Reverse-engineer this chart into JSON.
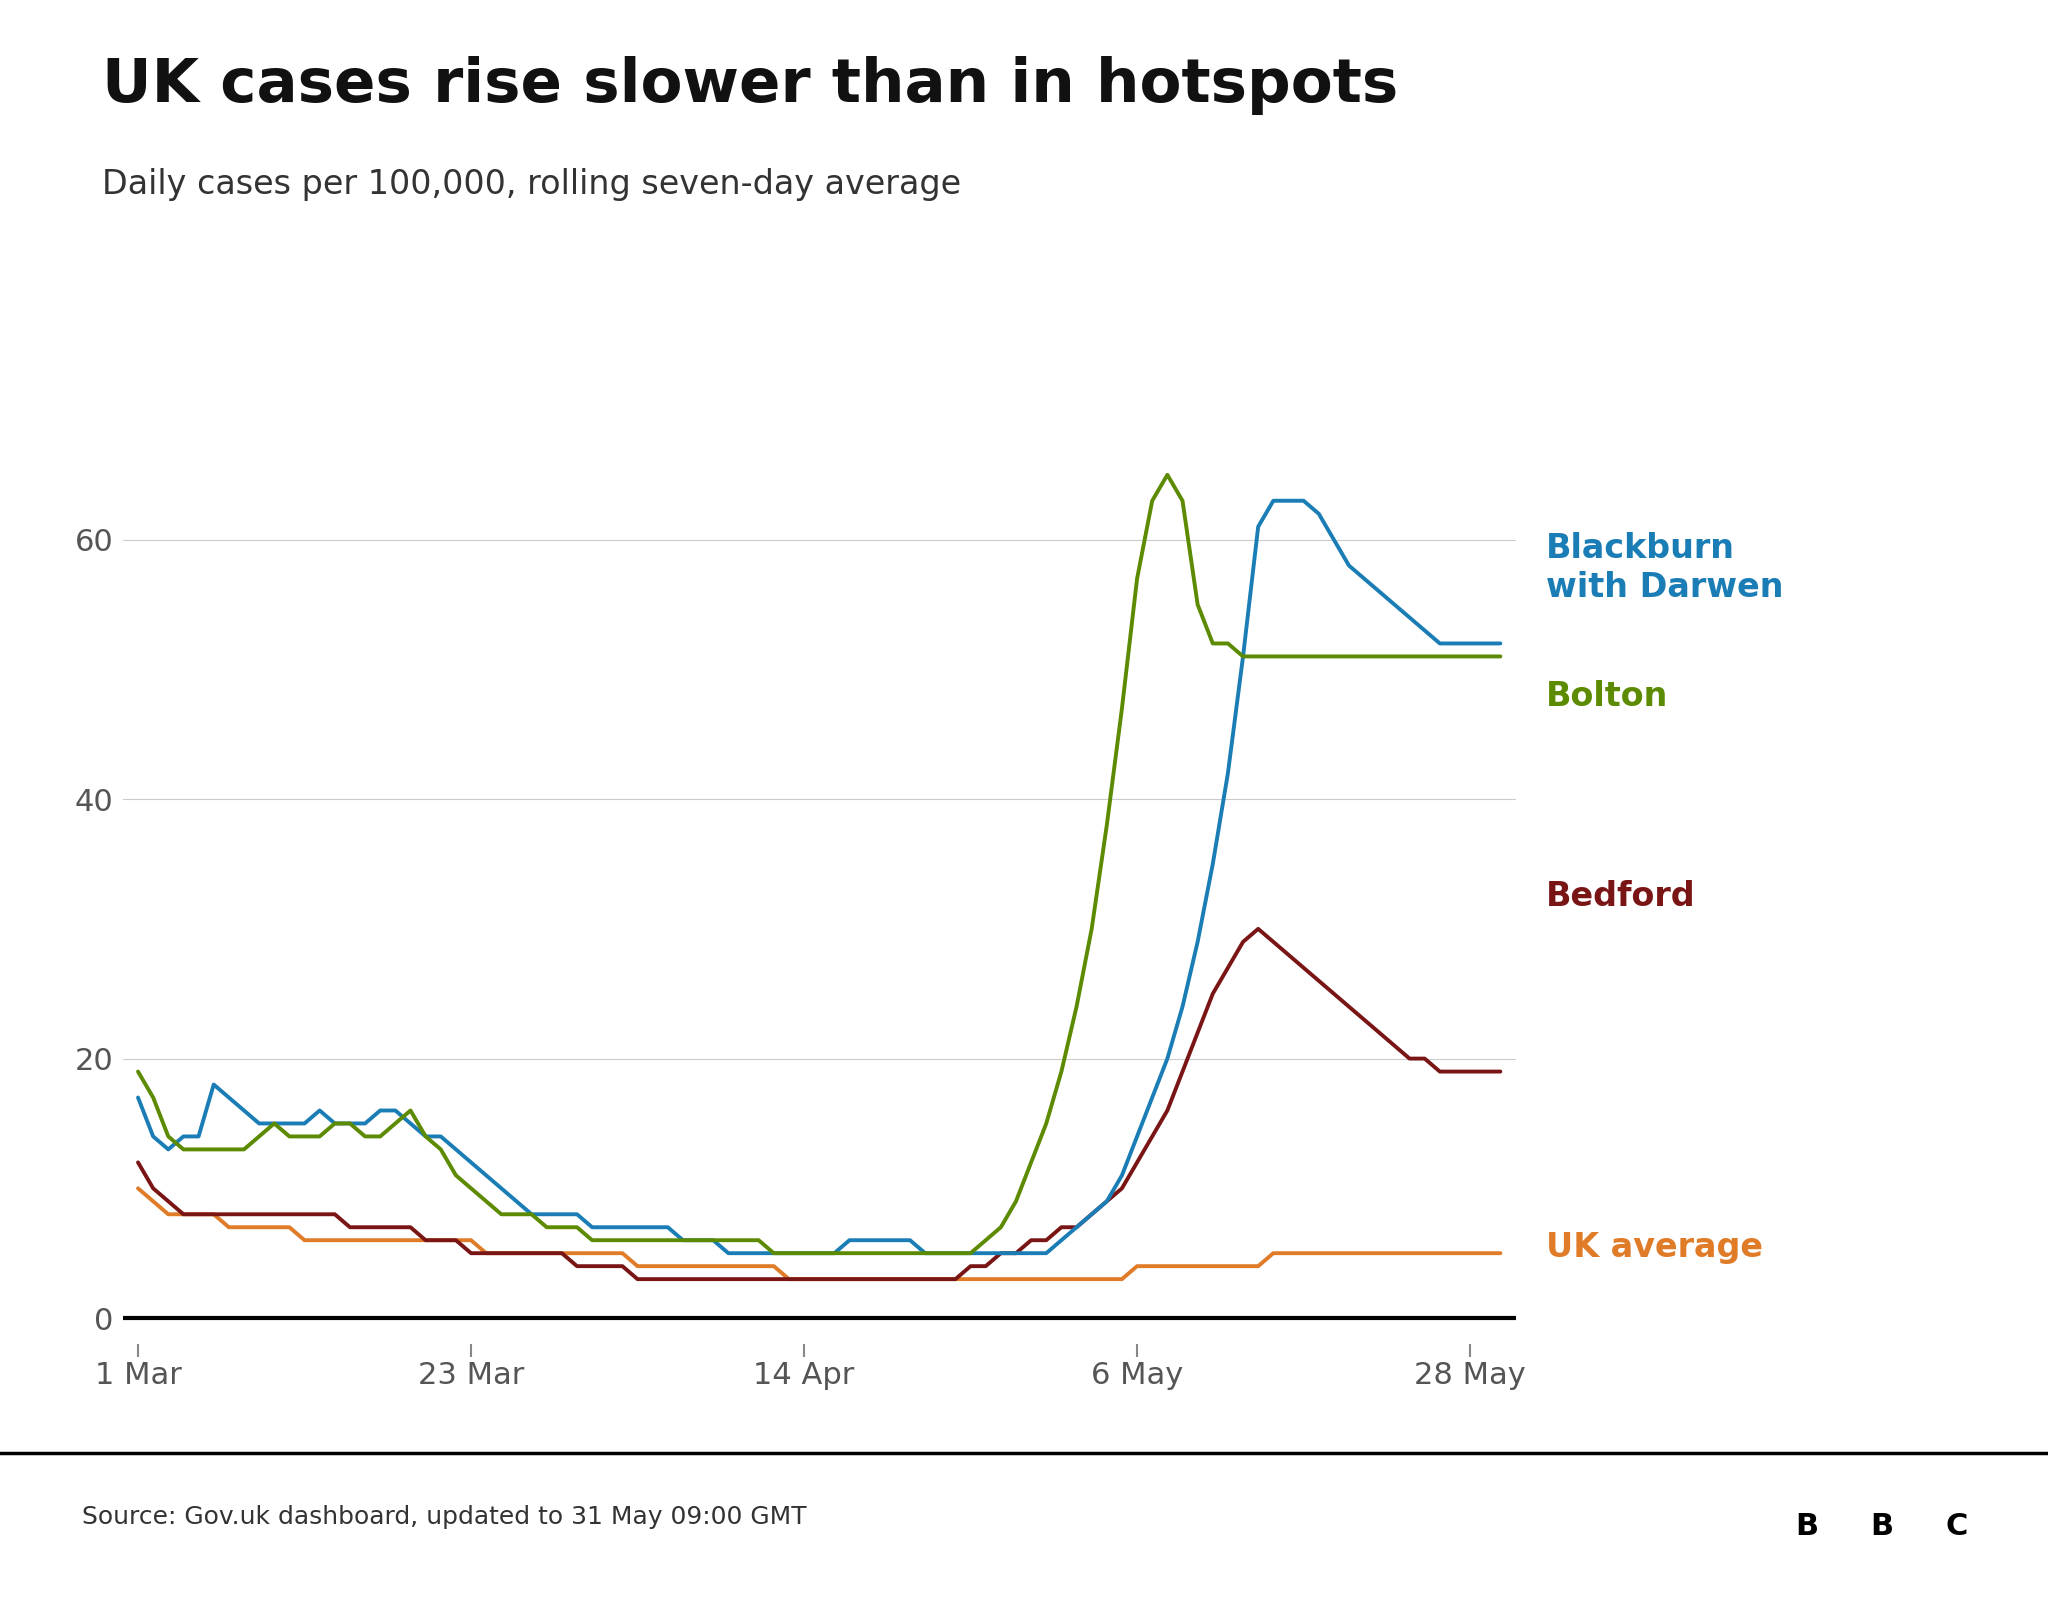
{
  "title": "UK cases rise slower than in hotspots",
  "subtitle": "Daily cases per 100,000, rolling seven-day average",
  "source": "Source: Gov.uk dashboard, updated to 31 May 09:00 GMT",
  "title_fontsize": 44,
  "subtitle_fontsize": 24,
  "source_fontsize": 18,
  "label_fontsize": 24,
  "tick_fontsize": 22,
  "bg_color": "#ffffff",
  "line_colors": {
    "blackburn": "#1a7db5",
    "bolton": "#5c8a00",
    "bedford": "#7a1515",
    "uk": "#e07b28"
  },
  "label_colors": {
    "blackburn": "#1a7db5",
    "bolton": "#5c8a00",
    "bedford": "#7a1515",
    "uk": "#e07b28"
  },
  "line_width": 2.8,
  "blackburn": [
    17,
    14,
    13,
    14,
    14,
    18,
    17,
    16,
    15,
    15,
    15,
    15,
    16,
    15,
    15,
    15,
    16,
    16,
    15,
    14,
    14,
    13,
    12,
    11,
    10,
    9,
    8,
    8,
    8,
    8,
    7,
    7,
    7,
    7,
    7,
    7,
    6,
    6,
    6,
    5,
    5,
    5,
    5,
    5,
    5,
    5,
    5,
    6,
    6,
    6,
    6,
    6,
    5,
    5,
    5,
    5,
    5,
    5,
    5,
    5,
    5,
    6,
    7,
    8,
    9,
    11,
    14,
    17,
    20,
    24,
    29,
    35,
    42,
    51,
    61,
    63,
    63,
    63,
    62,
    60,
    58,
    57,
    56,
    55,
    54,
    53,
    52,
    52,
    52,
    52,
    52
  ],
  "bolton": [
    19,
    17,
    14,
    13,
    13,
    13,
    13,
    13,
    14,
    15,
    14,
    14,
    14,
    15,
    15,
    14,
    14,
    15,
    16,
    14,
    13,
    11,
    10,
    9,
    8,
    8,
    8,
    7,
    7,
    7,
    6,
    6,
    6,
    6,
    6,
    6,
    6,
    6,
    6,
    6,
    6,
    6,
    5,
    5,
    5,
    5,
    5,
    5,
    5,
    5,
    5,
    5,
    5,
    5,
    5,
    5,
    6,
    7,
    9,
    12,
    15,
    19,
    24,
    30,
    38,
    47,
    57,
    63,
    65,
    63,
    55,
    52,
    52,
    51,
    51,
    51,
    51,
    51,
    51,
    51,
    51,
    51,
    51,
    51,
    51,
    51,
    51,
    51,
    51,
    51,
    51
  ],
  "bedford": [
    12,
    10,
    9,
    8,
    8,
    8,
    8,
    8,
    8,
    8,
    8,
    8,
    8,
    8,
    7,
    7,
    7,
    7,
    7,
    6,
    6,
    6,
    5,
    5,
    5,
    5,
    5,
    5,
    5,
    4,
    4,
    4,
    4,
    3,
    3,
    3,
    3,
    3,
    3,
    3,
    3,
    3,
    3,
    3,
    3,
    3,
    3,
    3,
    3,
    3,
    3,
    3,
    3,
    3,
    3,
    4,
    4,
    5,
    5,
    6,
    6,
    7,
    7,
    8,
    9,
    10,
    12,
    14,
    16,
    19,
    22,
    25,
    27,
    29,
    30,
    29,
    28,
    27,
    26,
    25,
    24,
    23,
    22,
    21,
    20,
    20,
    19,
    19,
    19,
    19,
    19
  ],
  "uk": [
    10,
    9,
    8,
    8,
    8,
    8,
    7,
    7,
    7,
    7,
    7,
    6,
    6,
    6,
    6,
    6,
    6,
    6,
    6,
    6,
    6,
    6,
    6,
    5,
    5,
    5,
    5,
    5,
    5,
    5,
    5,
    5,
    5,
    4,
    4,
    4,
    4,
    4,
    4,
    4,
    4,
    4,
    4,
    3,
    3,
    3,
    3,
    3,
    3,
    3,
    3,
    3,
    3,
    3,
    3,
    3,
    3,
    3,
    3,
    3,
    3,
    3,
    3,
    3,
    3,
    3,
    4,
    4,
    4,
    4,
    4,
    4,
    4,
    4,
    4,
    5,
    5,
    5,
    5,
    5,
    5,
    5,
    5,
    5,
    5,
    5,
    5,
    5,
    5,
    5,
    5
  ],
  "n_points": 91,
  "ylim": [
    -2,
    72
  ],
  "yticks": [
    0,
    20,
    40,
    60
  ],
  "xtick_labels": [
    "1 Mar",
    "23 Mar",
    "14 Apr",
    "6 May",
    "28 May"
  ],
  "xtick_days": [
    0,
    22,
    44,
    66,
    88
  ]
}
